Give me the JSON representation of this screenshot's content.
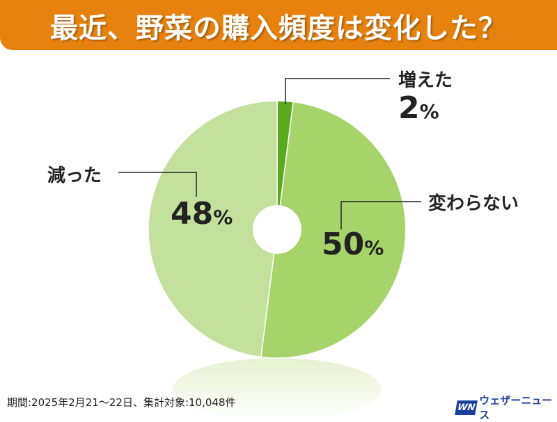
{
  "title": "最近、野菜の購入頻度は変化した？",
  "chart_data": {
    "type": "pie",
    "title": "最近、野菜の購入頻度は変化した？",
    "categories": [
      "増えた",
      "変わらない",
      "減った"
    ],
    "values": [
      2,
      50,
      48
    ],
    "labels": [
      "2",
      "50",
      "48"
    ],
    "unit": "%",
    "colors": [
      "#5BA91F",
      "#A6D46B",
      "#C3E19D"
    ]
  },
  "footer": "期間:2025年2月21～22日、集計対象:10,048件",
  "logo": {
    "mark": "WN",
    "text": "ウェザーニュース"
  }
}
